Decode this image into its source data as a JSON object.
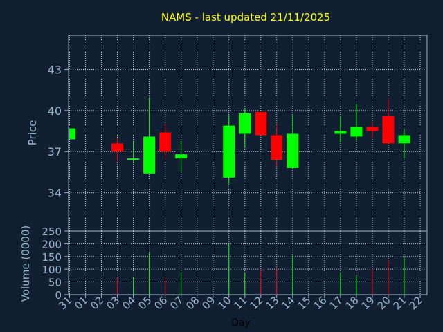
{
  "chart_data": [
    {
      "type": "candlestick",
      "title": "NAMS - last updated 21/11/2025",
      "ylabel": "Price",
      "ylim": [
        31.2,
        45.5
      ],
      "yticks": [
        "34",
        "37",
        "40",
        "43"
      ],
      "grid": true,
      "categories": [
        "31",
        "01",
        "02",
        "03",
        "04",
        "05",
        "06",
        "07",
        "08",
        "09",
        "10",
        "11",
        "12",
        "13",
        "14",
        "15",
        "16",
        "17",
        "18",
        "19",
        "20",
        "21",
        "22"
      ],
      "candles": [
        {
          "day": "31",
          "open": 37.9,
          "close": 38.7,
          "high": 38.7,
          "low": 37.9
        },
        {
          "day": "03",
          "open": 37.6,
          "close": 37.0,
          "high": 38.0,
          "low": 36.3
        },
        {
          "day": "04",
          "open": 36.4,
          "close": 36.5,
          "high": 37.8,
          "low": 36.2
        },
        {
          "day": "05",
          "open": 35.4,
          "close": 38.1,
          "high": 41.0,
          "low": 35.4
        },
        {
          "day": "06",
          "open": 38.4,
          "close": 37.0,
          "high": 39.0,
          "low": 36.4
        },
        {
          "day": "07",
          "open": 36.5,
          "close": 36.8,
          "high": 37.8,
          "low": 35.5
        },
        {
          "day": "10",
          "open": 35.1,
          "close": 38.9,
          "high": 39.7,
          "low": 34.6
        },
        {
          "day": "11",
          "open": 38.3,
          "close": 39.8,
          "high": 40.2,
          "low": 37.3
        },
        {
          "day": "12",
          "open": 39.9,
          "close": 38.2,
          "high": 39.9,
          "low": 38.2
        },
        {
          "day": "13",
          "open": 38.2,
          "close": 36.4,
          "high": 39.0,
          "low": 35.9
        },
        {
          "day": "14",
          "open": 35.8,
          "close": 38.3,
          "high": 39.7,
          "low": 35.8
        },
        {
          "day": "17",
          "open": 38.3,
          "close": 38.5,
          "high": 39.6,
          "low": 37.7
        },
        {
          "day": "18",
          "open": 38.1,
          "close": 38.8,
          "high": 40.5,
          "low": 37.8
        },
        {
          "day": "19",
          "open": 38.8,
          "close": 38.5,
          "high": 39.2,
          "low": 38.0
        },
        {
          "day": "20",
          "open": 39.6,
          "close": 37.6,
          "high": 40.9,
          "low": 37.6
        },
        {
          "day": "21",
          "open": 37.6,
          "close": 38.2,
          "high": 38.6,
          "low": 36.5
        }
      ],
      "up_color": "#00ff00",
      "down_color": "#ff0000"
    },
    {
      "type": "bar",
      "ylabel": "Volume (0000)",
      "xlabel": "Day",
      "ylim": [
        0,
        250
      ],
      "yticks": [
        "0",
        "50",
        "100",
        "150",
        "200",
        "250"
      ],
      "categories": [
        "31",
        "01",
        "02",
        "03",
        "04",
        "05",
        "06",
        "07",
        "08",
        "09",
        "10",
        "11",
        "12",
        "13",
        "14",
        "15",
        "16",
        "17",
        "18",
        "19",
        "20",
        "21",
        "22"
      ],
      "bars": [
        {
          "day": "03",
          "value": 68,
          "color": "#ff0000"
        },
        {
          "day": "04",
          "value": 70,
          "color": "#00ff00"
        },
        {
          "day": "05",
          "value": 165,
          "color": "#00ff00"
        },
        {
          "day": "06",
          "value": 65,
          "color": "#ff0000"
        },
        {
          "day": "07",
          "value": 90,
          "color": "#00ff00"
        },
        {
          "day": "10",
          "value": 200,
          "color": "#00ff00"
        },
        {
          "day": "11",
          "value": 88,
          "color": "#00ff00"
        },
        {
          "day": "12",
          "value": 100,
          "color": "#ff0000"
        },
        {
          "day": "13",
          "value": 105,
          "color": "#ff0000"
        },
        {
          "day": "14",
          "value": 155,
          "color": "#00ff00"
        },
        {
          "day": "17",
          "value": 88,
          "color": "#00ff00"
        },
        {
          "day": "18",
          "value": 75,
          "color": "#00ff00"
        },
        {
          "day": "19",
          "value": 100,
          "color": "#ff0000"
        },
        {
          "day": "20",
          "value": 135,
          "color": "#ff0000"
        },
        {
          "day": "21",
          "value": 148,
          "color": "#00ff00"
        }
      ]
    }
  ]
}
